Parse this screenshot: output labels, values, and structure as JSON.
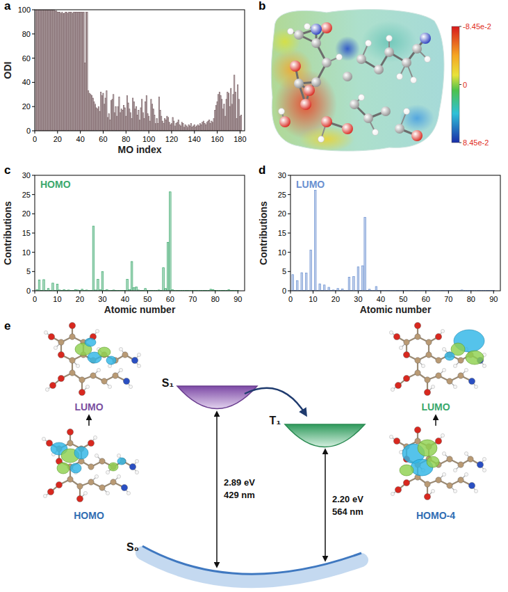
{
  "chart_data": [
    {
      "type": "bar",
      "panel": "a",
      "x_label": "MO index",
      "y_label": "ODI",
      "color": "#7d6468",
      "x": [
        1,
        2,
        3,
        4,
        5,
        6,
        7,
        8,
        9,
        10,
        11,
        12,
        13,
        14,
        15,
        16,
        17,
        18,
        19,
        20,
        21,
        22,
        23,
        24,
        25,
        26,
        27,
        28,
        29,
        30,
        31,
        32,
        33,
        34,
        35,
        36,
        37,
        38,
        39,
        40,
        41,
        42,
        43,
        44,
        45,
        46,
        47,
        48,
        49,
        50,
        51,
        52,
        53,
        54,
        55,
        56,
        57,
        58,
        59,
        60,
        61,
        62,
        63,
        64,
        65,
        66,
        67,
        68,
        69,
        70,
        71,
        72,
        73,
        74,
        75,
        76,
        77,
        78,
        79,
        80,
        81,
        82,
        83,
        84,
        85,
        86,
        87,
        88,
        89,
        90,
        91,
        92,
        93,
        94,
        95,
        96,
        97,
        98,
        99,
        100,
        101,
        102,
        103,
        104,
        105,
        106,
        107,
        108,
        109,
        110,
        111,
        112,
        113,
        114,
        115,
        116,
        117,
        118,
        119,
        120,
        121,
        122,
        123,
        124,
        125,
        126,
        127,
        128,
        129,
        130,
        131,
        132,
        133,
        134,
        135,
        136,
        137,
        138,
        139,
        140,
        141,
        142,
        143,
        144,
        145,
        146,
        147,
        148,
        149,
        150,
        151,
        152,
        153,
        154,
        155,
        156,
        157,
        158,
        159,
        160,
        161,
        162,
        163,
        164,
        165,
        166,
        167,
        168,
        169,
        170,
        171,
        172,
        173,
        174,
        175,
        176,
        177,
        178,
        179,
        180,
        181
      ],
      "values": [
        100,
        100,
        100,
        100,
        100,
        100,
        100,
        100,
        100,
        100,
        100,
        100,
        100,
        100,
        100,
        100,
        100,
        99,
        99,
        98,
        98,
        98,
        97,
        98,
        97,
        97,
        98,
        98,
        97,
        98,
        98,
        98,
        97,
        98,
        98,
        98,
        98,
        98,
        98,
        98,
        98,
        98,
        98,
        56,
        98,
        98,
        33,
        31,
        30,
        29,
        27,
        24,
        22,
        19,
        18,
        20,
        16,
        32,
        29,
        31,
        22,
        27,
        33,
        11,
        14,
        9,
        25,
        26,
        30,
        15,
        20,
        12,
        20,
        28,
        15,
        18,
        17,
        21,
        19,
        12,
        29,
        23,
        18,
        15,
        10,
        27,
        24,
        18,
        20,
        13,
        17,
        9,
        19,
        26,
        15,
        10,
        24,
        29,
        14,
        12,
        8,
        26,
        22,
        18,
        13,
        6,
        10,
        6,
        28,
        17,
        12,
        8,
        6,
        10,
        9,
        12,
        11,
        7,
        5,
        6,
        11,
        8,
        4,
        6,
        7,
        9,
        5,
        4,
        7,
        6,
        3,
        5,
        4,
        3,
        5,
        4,
        6,
        3,
        4,
        5,
        3,
        4,
        5,
        4,
        6,
        5,
        7,
        8,
        6,
        5,
        7,
        8,
        9,
        6,
        8,
        7,
        10,
        17,
        21,
        24,
        30,
        32,
        29,
        26,
        18,
        22,
        12,
        26,
        32,
        31,
        20,
        35,
        22,
        30,
        46,
        32,
        10,
        38,
        26,
        12,
        13
      ],
      "xlim": [
        0,
        184
      ],
      "ylim": [
        0,
        100
      ],
      "xticks": [
        0,
        20,
        40,
        60,
        80,
        100,
        120,
        140,
        160,
        180
      ],
      "yticks": [
        0,
        20,
        40,
        60,
        80,
        100
      ]
    },
    {
      "type": "bar",
      "panel": "c",
      "title": "HOMO",
      "x_label": "Atomic number",
      "y_label": "Contributions",
      "color": "#3aa86b",
      "x": [
        1,
        2,
        3,
        4,
        5,
        6,
        7,
        8,
        9,
        10,
        11,
        12,
        13,
        14,
        15,
        16,
        17,
        18,
        19,
        20,
        21,
        22,
        23,
        24,
        25,
        26,
        27,
        28,
        29,
        30,
        31,
        32,
        33,
        34,
        35,
        36,
        37,
        38,
        39,
        40,
        41,
        42,
        43,
        44,
        45,
        46,
        47,
        48,
        49,
        50,
        51,
        52,
        53,
        54,
        55,
        56,
        57,
        58,
        59,
        60,
        61,
        62,
        63,
        64,
        65,
        66,
        67,
        68,
        69,
        70,
        71,
        72,
        73,
        74,
        75,
        76,
        77,
        78,
        79,
        80,
        81,
        82,
        83,
        84,
        85,
        86,
        87,
        88,
        89,
        90
      ],
      "values": [
        0.3,
        2.8,
        0.1,
        2.9,
        0.1,
        0.6,
        0.1,
        2.0,
        0.1,
        1.7,
        0.2,
        0.1,
        0.3,
        0.1,
        0.2,
        0.1,
        0.1,
        0.3,
        0.2,
        0.1,
        0.4,
        0.1,
        0.2,
        0.1,
        0.1,
        16.8,
        0.2,
        3.0,
        0.3,
        5.0,
        0.1,
        0.3,
        0.1,
        0.1,
        0.2,
        0.1,
        0.1,
        0.1,
        0.1,
        0.1,
        3.0,
        0.3,
        7.6,
        0.8,
        1.0,
        0.2,
        0.1,
        0.1,
        0.6,
        0.1,
        0.1,
        0.1,
        0.1,
        0.1,
        0.2,
        0.1,
        6.0,
        0.6,
        12.6,
        25.7,
        0.3,
        0.1,
        0.1,
        0.1,
        0.1,
        0.1,
        0.1,
        0.1,
        0.1,
        0.1,
        0.1,
        0.1,
        0.1,
        0.1,
        0.1,
        0.1,
        0.1,
        0.4,
        0.3,
        0.1,
        0.1,
        0.1,
        0.1,
        0.1,
        0.1,
        0.3,
        0.1,
        0.1,
        0.1,
        0.1
      ],
      "xlim": [
        0,
        93
      ],
      "ylim": [
        0,
        30
      ],
      "xticks": [
        0,
        10,
        20,
        30,
        40,
        50,
        60,
        70,
        80,
        90
      ],
      "yticks": [
        0,
        5,
        10,
        15,
        20,
        25,
        30
      ]
    },
    {
      "type": "bar",
      "panel": "d",
      "title": "LUMO",
      "x_label": "Atomic number",
      "y_label": "Contributions",
      "color": "#6a8fd0",
      "x": [
        1,
        2,
        3,
        4,
        5,
        6,
        7,
        8,
        9,
        10,
        11,
        12,
        13,
        14,
        15,
        16,
        17,
        18,
        19,
        20,
        21,
        22,
        23,
        24,
        25,
        26,
        27,
        28,
        29,
        30,
        31,
        32,
        33,
        34,
        35,
        36,
        37,
        38,
        39,
        40,
        41,
        42,
        43,
        44,
        45,
        46,
        47,
        48,
        49,
        50,
        51,
        52,
        53,
        54,
        55,
        56,
        57,
        58,
        59,
        60,
        61,
        62,
        63,
        64,
        65,
        66,
        67,
        68,
        69,
        70,
        71,
        72,
        73,
        74,
        75,
        76,
        77,
        78,
        79,
        80,
        81,
        82,
        83,
        84,
        85,
        86,
        87,
        88,
        89,
        90
      ],
      "values": [
        4.2,
        0.1,
        2.6,
        0.1,
        4.7,
        0.1,
        4.6,
        0.1,
        10.6,
        0.1,
        26.1,
        0.1,
        1.8,
        0.1,
        1.5,
        0.1,
        0.9,
        0.1,
        0.2,
        0.1,
        0.6,
        0.1,
        0.5,
        0.1,
        0.1,
        3.5,
        0.1,
        3.7,
        0.1,
        6.2,
        0.1,
        6.5,
        19.1,
        0.1,
        0.4,
        0.1,
        0.1,
        1.1,
        0.1,
        0.1,
        0.1,
        0.1,
        0.1,
        0.1,
        0.1,
        0.1,
        0.1,
        0.1,
        0.1,
        0.1,
        0.1,
        0.1,
        0.1,
        0.1,
        0.1,
        0.1,
        0.1,
        0.1,
        0.1,
        0.1,
        0.1,
        0.1,
        0.1,
        0.1,
        0.1,
        0.1,
        0.1,
        0.1,
        0.1,
        0.1,
        0.1,
        0.1,
        0.1,
        0.1,
        0.1,
        0.2,
        0.1,
        0.1,
        0.1,
        0.1,
        0.1,
        0.1,
        0.1,
        0.1,
        0.1,
        0.1,
        0.1,
        0.1,
        0.1,
        0.1
      ],
      "xlim": [
        0,
        93
      ],
      "ylim": [
        0,
        30
      ],
      "xticks": [
        0,
        10,
        20,
        30,
        40,
        50,
        60,
        70,
        80,
        90
      ],
      "yticks": [
        0,
        5,
        10,
        15,
        20,
        25,
        30
      ]
    }
  ],
  "esp_map": {
    "panel": "b",
    "colorbar": {
      "range": [
        -0.0845,
        0.0845
      ],
      "ticks": [
        {
          "value": -0.0845,
          "label": "-8.45e-2"
        },
        {
          "value": 0,
          "label": "0"
        },
        {
          "value": 0.0845,
          "label": "8.45e-2"
        }
      ]
    }
  },
  "energy_diagram": {
    "panel": "e",
    "states": [
      "S₁",
      "T₁",
      "S₀"
    ],
    "transitions": [
      {
        "energy": "2.89 eV",
        "wavelength": "429 nm"
      },
      {
        "energy": "2.20 eV",
        "wavelength": "564 nm"
      }
    ],
    "orbitals": [
      {
        "label": "LUMO",
        "color": "#7b4fa0"
      },
      {
        "label": "HOMO",
        "color": "#2f6db3"
      },
      {
        "label": "LUMO",
        "color": "#3aa86b"
      },
      {
        "label": "HOMO-4",
        "color": "#2f6db3"
      }
    ]
  }
}
